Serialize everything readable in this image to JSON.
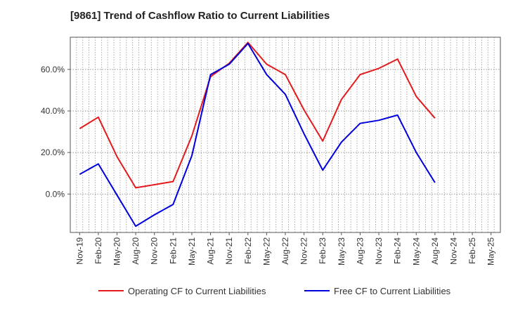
{
  "chart_data": {
    "type": "line",
    "title": "[9861]  Trend of Cashflow Ratio to Current Liabilities",
    "xlabel": "",
    "ylabel": "",
    "x": [
      "Nov-19",
      "Feb-20",
      "May-20",
      "Aug-20",
      "Nov-20",
      "Feb-21",
      "May-21",
      "Aug-21",
      "Nov-21",
      "Feb-22",
      "May-22",
      "Aug-22",
      "Nov-22",
      "Feb-23",
      "May-23",
      "Aug-23",
      "Nov-23",
      "Feb-24",
      "May-24",
      "Aug-24",
      "Nov-24",
      "Feb-25",
      "May-25"
    ],
    "yticks": [
      0,
      20,
      40,
      60
    ],
    "ytick_labels": [
      "0.0%",
      "20.0%",
      "40.0%",
      "60.0%"
    ],
    "ylim": [
      -18.5,
      75.5
    ],
    "grid": true,
    "legend_position": "bottom",
    "series": [
      {
        "name": "Operating CF to Current Liabilities",
        "color": "#e41a1c",
        "values": [
          31.5,
          37,
          18,
          3,
          4.5,
          6,
          28,
          56.5,
          63,
          73,
          62.5,
          57.5,
          40.5,
          25.5,
          45.5,
          57.5,
          60.5,
          65,
          47,
          36.5,
          null,
          null,
          null
        ]
      },
      {
        "name": "Free CF to Current Liabilities",
        "color": "#0000dd",
        "values": [
          9.5,
          14.5,
          -0.5,
          -15.5,
          -10,
          -5,
          18.5,
          57.5,
          62.5,
          72.5,
          57.5,
          48,
          29,
          11.5,
          25,
          34,
          35.5,
          38,
          20,
          5.5,
          null,
          null,
          null
        ]
      }
    ]
  }
}
